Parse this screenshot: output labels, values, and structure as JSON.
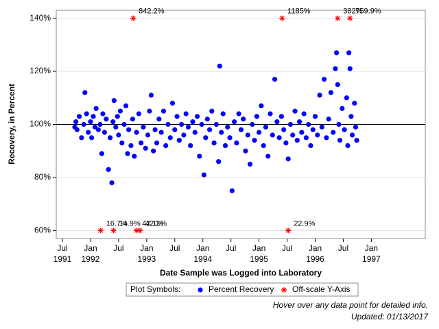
{
  "chart_data": {
    "type": "scatter",
    "ylabel": "Recovery, in Percent",
    "xlabel": "Date Sample was Logged into Laboratory",
    "xlim": [
      1991.39,
      1997.96
    ],
    "ylim": [
      57,
      143
    ],
    "yticks": [
      {
        "value": 60,
        "label": "60%"
      },
      {
        "value": 80,
        "label": "80%"
      },
      {
        "value": 100,
        "label": "100%"
      },
      {
        "value": 120,
        "label": "120%"
      },
      {
        "value": 140,
        "label": "140%"
      }
    ],
    "xticks": [
      {
        "value": 1991.5,
        "label": "Jul"
      },
      {
        "value": 1992,
        "label": "Jan"
      },
      {
        "value": 1992.5,
        "label": "Jul"
      },
      {
        "value": 1993,
        "label": "Jan"
      },
      {
        "value": 1993.5,
        "label": "Jul"
      },
      {
        "value": 1994,
        "label": "Jan"
      },
      {
        "value": 1994.5,
        "label": "Jul"
      },
      {
        "value": 1995,
        "label": "Jan"
      },
      {
        "value": 1995.5,
        "label": "Jul"
      },
      {
        "value": 1996,
        "label": "Jan"
      },
      {
        "value": 1996.5,
        "label": "Jul"
      },
      {
        "value": 1997,
        "label": "Jan"
      }
    ],
    "x_year_labels": [
      {
        "value": 1991.5,
        "label": "1991"
      },
      1992,
      1993,
      1994,
      1995,
      1996,
      1997
    ],
    "refline": 100,
    "legend_title": "Plot Symbols:",
    "series": [
      {
        "name": "Percent Recovery",
        "color": "#0000ff",
        "marker": "circle",
        "x": [
          1991.72,
          1991.74,
          1991.76,
          1991.8,
          1991.84,
          1991.88,
          1991.9,
          1991.93,
          1991.96,
          1992.0,
          1992.02,
          1992.05,
          1992.08,
          1992.1,
          1992.14,
          1992.17,
          1992.2,
          1992.22,
          1992.25,
          1992.28,
          1992.32,
          1992.35,
          1992.38,
          1992.4,
          1992.42,
          1992.45,
          1992.48,
          1992.5,
          1992.53,
          1992.56,
          1992.6,
          1992.63,
          1992.66,
          1992.68,
          1992.72,
          1992.75,
          1992.78,
          1992.82,
          1992.86,
          1992.9,
          1992.94,
          1992.98,
          1993.02,
          1993.05,
          1993.08,
          1993.12,
          1993.15,
          1993.18,
          1993.22,
          1993.26,
          1993.3,
          1993.34,
          1993.38,
          1993.42,
          1993.46,
          1993.5,
          1993.54,
          1993.58,
          1993.62,
          1993.66,
          1993.7,
          1993.74,
          1993.78,
          1993.82,
          1993.86,
          1993.9,
          1993.94,
          1993.98,
          1994.02,
          1994.05,
          1994.08,
          1994.12,
          1994.16,
          1994.2,
          1994.24,
          1994.28,
          1994.3,
          1994.33,
          1994.36,
          1994.4,
          1994.44,
          1994.48,
          1994.52,
          1994.56,
          1994.6,
          1994.64,
          1994.68,
          1994.72,
          1994.76,
          1994.8,
          1994.84,
          1994.88,
          1994.92,
          1994.96,
          1995.0,
          1995.04,
          1995.08,
          1995.12,
          1995.16,
          1995.2,
          1995.24,
          1995.28,
          1995.32,
          1995.36,
          1995.4,
          1995.44,
          1995.48,
          1995.52,
          1995.56,
          1995.6,
          1995.64,
          1995.68,
          1995.72,
          1995.76,
          1995.8,
          1995.84,
          1995.88,
          1995.92,
          1995.96,
          1996.0,
          1996.04,
          1996.08,
          1996.12,
          1996.16,
          1996.2,
          1996.24,
          1996.28,
          1996.32,
          1996.36,
          1996.38,
          1996.4,
          1996.42,
          1996.44,
          1996.48,
          1996.52,
          1996.56,
          1996.58,
          1996.6,
          1996.62,
          1996.64,
          1996.66,
          1996.7,
          1996.72,
          1996.74
        ],
        "values": [
          99,
          101,
          98,
          103,
          95,
          100,
          112,
          104,
          97,
          101,
          95,
          103,
          99,
          106,
          98,
          100,
          89,
          104,
          97,
          102,
          83,
          95,
          78,
          101,
          109,
          99,
          103,
          96,
          105,
          93,
          100,
          107,
          89,
          98,
          92,
          102,
          88,
          97,
          104,
          93,
          99,
          91,
          96,
          105,
          111,
          90,
          98,
          93,
          102,
          97,
          105,
          92,
          100,
          95,
          108,
          98,
          103,
          94,
          100,
          96,
          104,
          99,
          92,
          101,
          97,
          103,
          88,
          100,
          81,
          95,
          102,
          98,
          105,
          93,
          100,
          86,
          122,
          97,
          104,
          92,
          99,
          95,
          75,
          101,
          93,
          104,
          98,
          102,
          90,
          96,
          85,
          100,
          94,
          103,
          97,
          107,
          92,
          99,
          88,
          104,
          96,
          117,
          101,
          95,
          103,
          98,
          93,
          87,
          100,
          96,
          105,
          94,
          101,
          97,
          104,
          95,
          100,
          92,
          98,
          103,
          96,
          111,
          99,
          117,
          95,
          102,
          112,
          97,
          121,
          127,
          115,
          100,
          94,
          106,
          98,
          110,
          92,
          127,
          121,
          103,
          96,
          108,
          99,
          94
        ]
      },
      {
        "name": "Off-scale Y-Axis",
        "color": "#ff0000",
        "marker": "star",
        "x": [
          1992.18,
          1992.41,
          1992.76,
          1992.82,
          1992.88,
          1995.41,
          1995.52,
          1996.4,
          1996.62
        ],
        "values": [
          16.7,
          14.9,
          842.2,
          42.1,
          42.2,
          1185,
          22.9,
          382,
          759.9
        ],
        "value_labels": [
          "16.7%",
          "14.9%",
          "842.2%",
          "42.1%",
          "42.2%",
          "1185%",
          "22.9%",
          "382%",
          "759.9%"
        ]
      }
    ],
    "footnotes": [
      "Hover over any data point for detailed info.",
      "Updated: 01/13/2017"
    ]
  }
}
